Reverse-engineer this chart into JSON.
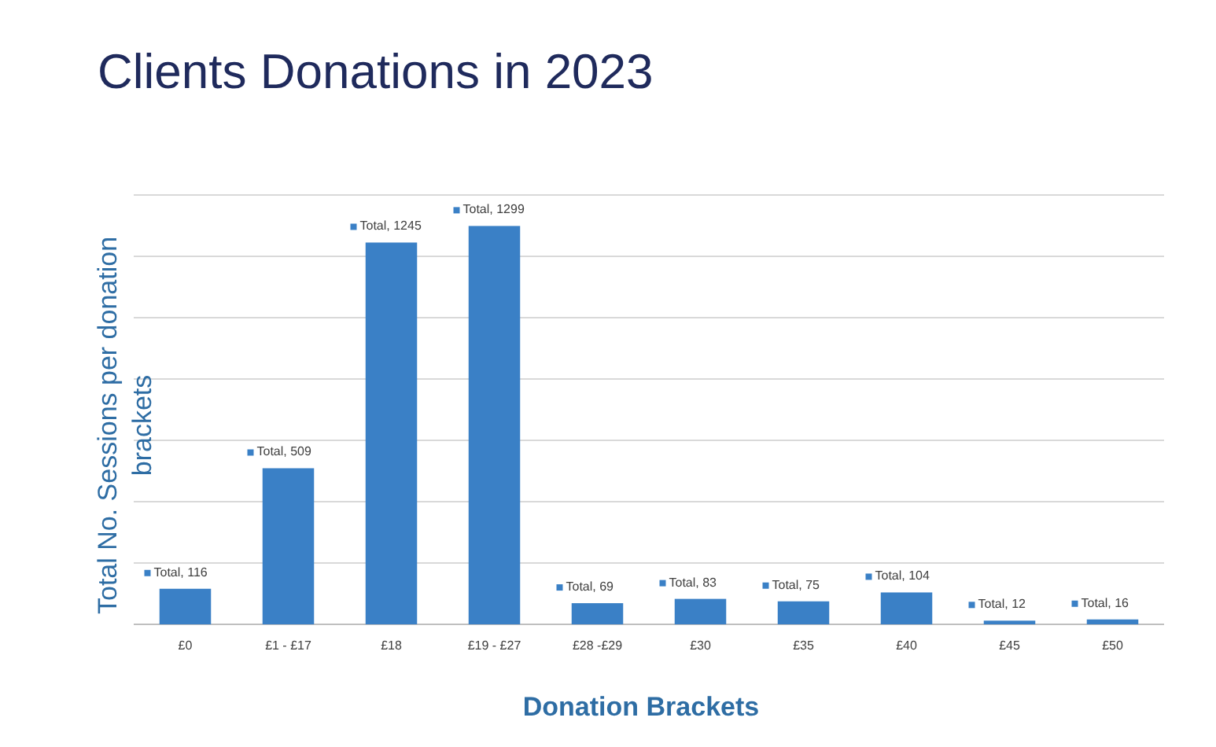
{
  "chart_data": {
    "type": "bar",
    "title": "Clients Donations in 2023",
    "xlabel": "Donation Brackets",
    "ylabel": "Total No. Sessions per donation brackets",
    "categories": [
      "£0",
      "£1 - £17",
      "£18",
      "£19 - £27",
      "£28 -£29",
      "£30",
      "£35",
      "£40",
      "£45",
      "£50"
    ],
    "values": [
      116,
      509,
      1245,
      1299,
      69,
      83,
      75,
      104,
      12,
      16
    ],
    "value_labels": [
      "Total, 116",
      "Total, 509",
      "Total, 1245",
      "Total, 1299",
      "Total, 69",
      "Total, 83",
      "Total, 75",
      "Total, 104",
      "Total, 12",
      "Total, 16"
    ],
    "color": "#3a80c6",
    "ylim": [
      0,
      1400
    ],
    "yticks": [
      {
        "value": 0,
        "label": null
      },
      {
        "value": 200,
        "label": null
      },
      {
        "value": 400,
        "label": null
      },
      {
        "value": 600,
        "label": null
      },
      {
        "value": 800,
        "label": null
      },
      {
        "value": 1000,
        "label": null
      },
      {
        "value": 1200,
        "label": null
      },
      {
        "value": 1400,
        "label": null
      }
    ],
    "grid": "y",
    "tick_labels": "x"
  }
}
